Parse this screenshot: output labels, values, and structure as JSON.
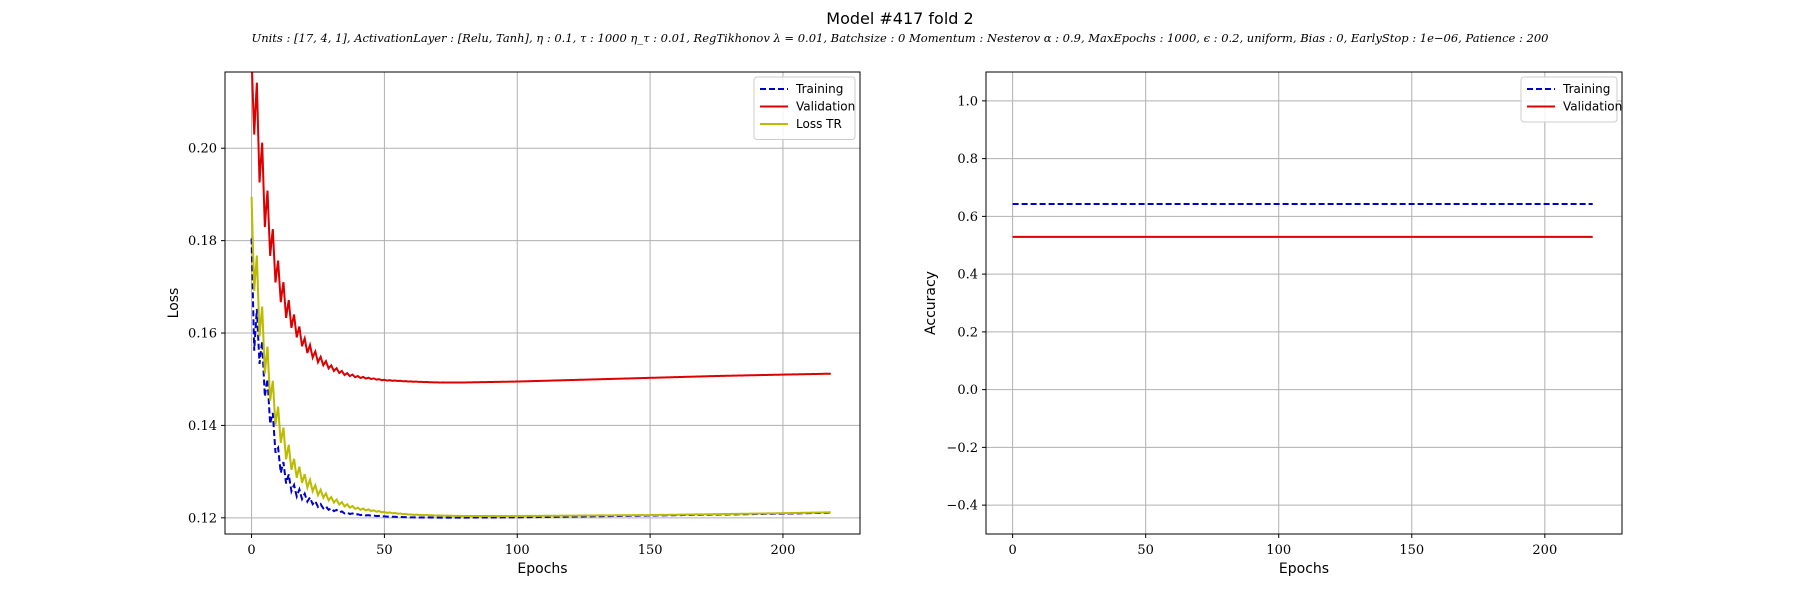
{
  "figure": {
    "title": "Model #417 fold 2",
    "subtitle": "Units : [17, 4, 1], ActivationLayer : [Relu, Tanh], η : 0.1, τ : 1000 η_τ : 0.01, RegTikhonov λ = 0.01, Batchsize : 0 Momentum : Nesterov α : 0.9, MaxEpochs : 1000, ϵ : 0.2, uniform, Bias : 0, EarlyStop : 1e−06, Patience : 200"
  },
  "chart_data": [
    {
      "type": "line",
      "xlabel": "Epochs",
      "ylabel": "Loss",
      "xlim": [
        -10,
        229
      ],
      "ylim": [
        0.1165,
        0.2165
      ],
      "xticks": [
        0,
        50,
        100,
        150,
        200
      ],
      "yticks": [
        0.12,
        0.14,
        0.16,
        0.18,
        0.2
      ],
      "ytick_labels": [
        "0.12",
        "0.14",
        "0.16",
        "0.18",
        "0.20"
      ],
      "grid": true,
      "legend": "top-right",
      "x_max": 218,
      "series": [
        {
          "name": "Training",
          "color": "#0000cc",
          "style": "dashed",
          "zig_amp": 0.0065,
          "zig_decay": 0.11,
          "points": [
            [
              0,
              0.174
            ],
            [
              1,
              0.162
            ],
            [
              3,
              0.158
            ],
            [
              5,
              0.15
            ],
            [
              8,
              0.14
            ],
            [
              10,
              0.133
            ],
            [
              13,
              0.129
            ],
            [
              16,
              0.126
            ],
            [
              20,
              0.1245
            ],
            [
              25,
              0.1228
            ],
            [
              30,
              0.1218
            ],
            [
              35,
              0.1211
            ],
            [
              40,
              0.1207
            ],
            [
              50,
              0.1203
            ],
            [
              60,
              0.1201
            ],
            [
              70,
              0.12005
            ],
            [
              80,
              0.12005
            ],
            [
              100,
              0.1201
            ],
            [
              125,
              0.1203
            ],
            [
              150,
              0.1205
            ],
            [
              175,
              0.1207
            ],
            [
              200,
              0.1209
            ],
            [
              218,
              0.1211
            ]
          ]
        },
        {
          "name": "Validation",
          "color": "#dd0000",
          "style": "solid",
          "zig_amp": 0.01,
          "zig_decay": 0.1,
          "points": [
            [
              0,
              0.21
            ],
            [
              1,
              0.212
            ],
            [
              3,
              0.2
            ],
            [
              5,
              0.189
            ],
            [
              8,
              0.178
            ],
            [
              10,
              0.172
            ],
            [
              13,
              0.166
            ],
            [
              16,
              0.162
            ],
            [
              20,
              0.1575
            ],
            [
              25,
              0.1545
            ],
            [
              30,
              0.1525
            ],
            [
              35,
              0.1512
            ],
            [
              40,
              0.1505
            ],
            [
              50,
              0.1498
            ],
            [
              60,
              0.1495
            ],
            [
              70,
              0.1493
            ],
            [
              80,
              0.1493
            ],
            [
              100,
              0.1495
            ],
            [
              125,
              0.1499
            ],
            [
              150,
              0.1503
            ],
            [
              175,
              0.1507
            ],
            [
              200,
              0.151
            ],
            [
              218,
              0.1512
            ]
          ]
        },
        {
          "name": "Loss TR",
          "color": "#bbbb00",
          "style": "solid",
          "zig_amp": 0.0075,
          "zig_decay": 0.09,
          "points": [
            [
              0,
              0.182
            ],
            [
              1,
              0.176
            ],
            [
              3,
              0.165
            ],
            [
              5,
              0.156
            ],
            [
              8,
              0.146
            ],
            [
              10,
              0.141
            ],
            [
              13,
              0.135
            ],
            [
              16,
              0.131
            ],
            [
              20,
              0.1282
            ],
            [
              25,
              0.1257
            ],
            [
              30,
              0.124
            ],
            [
              35,
              0.1228
            ],
            [
              40,
              0.122
            ],
            [
              50,
              0.1212
            ],
            [
              60,
              0.1207
            ],
            [
              70,
              0.1205
            ],
            [
              80,
              0.1204
            ],
            [
              100,
              0.1204
            ],
            [
              125,
              0.1205
            ],
            [
              150,
              0.1206
            ],
            [
              175,
              0.1208
            ],
            [
              200,
              0.121
            ],
            [
              218,
              0.1212
            ]
          ]
        }
      ]
    },
    {
      "type": "line",
      "xlabel": "Epochs",
      "ylabel": "Accuracy",
      "xlim": [
        -10,
        229
      ],
      "ylim": [
        -0.5,
        1.1
      ],
      "xticks": [
        0,
        50,
        100,
        150,
        200
      ],
      "yticks": [
        -0.4,
        -0.2,
        0.0,
        0.2,
        0.4,
        0.6,
        0.8,
        1.0
      ],
      "ytick_labels": [
        "−0.4",
        "−0.2",
        "0.0",
        "0.2",
        "0.4",
        "0.6",
        "0.8",
        "1.0"
      ],
      "grid": true,
      "legend": "top-right",
      "x_max": 218,
      "series": [
        {
          "name": "Training",
          "color": "#0000cc",
          "style": "dashed",
          "zig_amp": 0,
          "zig_decay": 0,
          "points": [
            [
              0,
              0.643
            ],
            [
              218,
              0.643
            ]
          ]
        },
        {
          "name": "Validation",
          "color": "#dd0000",
          "style": "solid",
          "zig_amp": 0,
          "zig_decay": 0,
          "points": [
            [
              0,
              0.529
            ],
            [
              218,
              0.529
            ]
          ]
        }
      ]
    }
  ]
}
